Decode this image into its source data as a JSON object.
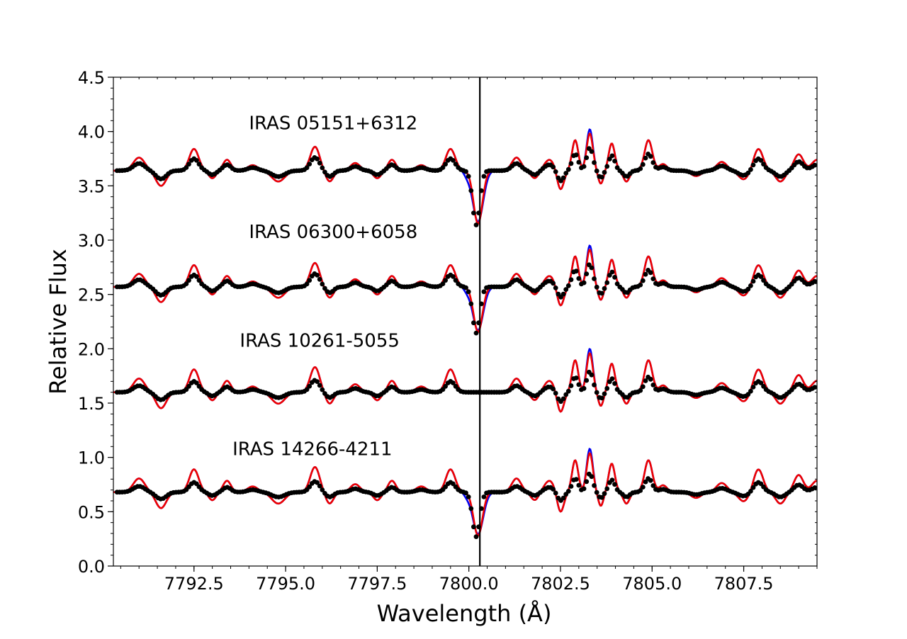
{
  "chart_data": {
    "type": "line",
    "title": "",
    "xlabel": "Wavelength (Å)",
    "ylabel": "Relative Flux",
    "xlim": [
      7790.3,
      7809.5
    ],
    "ylim": [
      0.0,
      4.5
    ],
    "xticks": [
      7792.5,
      7795.0,
      7797.5,
      7800.0,
      7802.5,
      7805.0,
      7807.5
    ],
    "xtick_labels": [
      "7792.5",
      "7795.0",
      "7797.5",
      "7800.0",
      "7802.5",
      "7805.0",
      "7807.5"
    ],
    "yticks": [
      0.0,
      0.5,
      1.0,
      1.5,
      2.0,
      2.5,
      3.0,
      3.5,
      4.0,
      4.5
    ],
    "ytick_labels": [
      "0.0",
      "0.5",
      "1.0",
      "1.5",
      "2.0",
      "2.5",
      "3.0",
      "3.5",
      "4.0",
      "4.5"
    ],
    "vline": 7800.3,
    "grid": false,
    "colors": {
      "observed": "#000000",
      "model_blue": "#0000ee",
      "model_red": "#ee0000"
    },
    "features": [
      {
        "center": 7791.0,
        "depth": -0.12,
        "width": 0.22
      },
      {
        "center": 7791.6,
        "depth": 0.14,
        "width": 0.2
      },
      {
        "center": 7792.5,
        "depth": -0.2,
        "width": 0.18
      },
      {
        "center": 7793.0,
        "depth": 0.07,
        "width": 0.14
      },
      {
        "center": 7793.4,
        "depth": -0.1,
        "width": 0.15
      },
      {
        "center": 7794.1,
        "depth": -0.05,
        "width": 0.2
      },
      {
        "center": 7794.8,
        "depth": 0.1,
        "width": 0.25
      },
      {
        "center": 7795.8,
        "depth": -0.22,
        "width": 0.18
      },
      {
        "center": 7796.2,
        "depth": 0.1,
        "width": 0.15
      },
      {
        "center": 7796.9,
        "depth": -0.07,
        "width": 0.18
      },
      {
        "center": 7797.5,
        "depth": 0.07,
        "width": 0.15
      },
      {
        "center": 7797.9,
        "depth": -0.1,
        "width": 0.15
      },
      {
        "center": 7798.7,
        "depth": -0.05,
        "width": 0.2
      },
      {
        "center": 7799.5,
        "depth": -0.2,
        "width": 0.18
      },
      {
        "center": 7800.25,
        "depth": 0.55,
        "width": 0.16
      },
      {
        "center": 7801.3,
        "depth": -0.12,
        "width": 0.18
      },
      {
        "center": 7801.8,
        "depth": 0.07,
        "width": 0.15
      },
      {
        "center": 7802.2,
        "depth": -0.1,
        "width": 0.2
      },
      {
        "center": 7802.5,
        "depth": 0.18,
        "width": 0.13
      },
      {
        "center": 7802.9,
        "depth": -0.28,
        "width": 0.12
      },
      {
        "center": 7803.3,
        "depth": -0.38,
        "width": 0.12
      },
      {
        "center": 7803.6,
        "depth": 0.12,
        "width": 0.1
      },
      {
        "center": 7803.9,
        "depth": -0.25,
        "width": 0.12
      },
      {
        "center": 7804.3,
        "depth": 0.1,
        "width": 0.12
      },
      {
        "center": 7804.9,
        "depth": -0.28,
        "width": 0.15
      },
      {
        "center": 7805.3,
        "depth": -0.06,
        "width": 0.15
      },
      {
        "center": 7806.2,
        "depth": 0.05,
        "width": 0.2
      },
      {
        "center": 7806.9,
        "depth": -0.08,
        "width": 0.2
      },
      {
        "center": 7807.5,
        "depth": 0.08,
        "width": 0.2
      },
      {
        "center": 7807.9,
        "depth": -0.2,
        "width": 0.18
      },
      {
        "center": 7808.5,
        "depth": 0.1,
        "width": 0.18
      },
      {
        "center": 7809.0,
        "depth": -0.15,
        "width": 0.18
      },
      {
        "center": 7809.5,
        "depth": -0.1,
        "width": 0.2
      }
    ],
    "series": [
      {
        "label": "IRAS 05151+6312",
        "offset": 3.64,
        "line_depth": 1.0,
        "model_amp": 1.0,
        "obs_amp": 0.55,
        "label_x": 7794.0,
        "label_y": 4.02
      },
      {
        "label": "IRAS 06300+6058",
        "offset": 2.57,
        "line_depth": 0.85,
        "model_amp": 1.0,
        "obs_amp": 0.55,
        "label_x": 7794.0,
        "label_y": 3.02
      },
      {
        "label": "IRAS 10261-5055",
        "offset": 1.6,
        "line_depth": 0.0,
        "model_amp": 1.05,
        "obs_amp": 0.5,
        "label_x": 7793.75,
        "label_y": 2.02
      },
      {
        "label": "IRAS 14266-4211",
        "offset": 0.68,
        "line_depth": 0.82,
        "model_amp": 1.05,
        "obs_amp": 0.45,
        "label_x": 7793.55,
        "label_y": 1.02
      }
    ]
  }
}
